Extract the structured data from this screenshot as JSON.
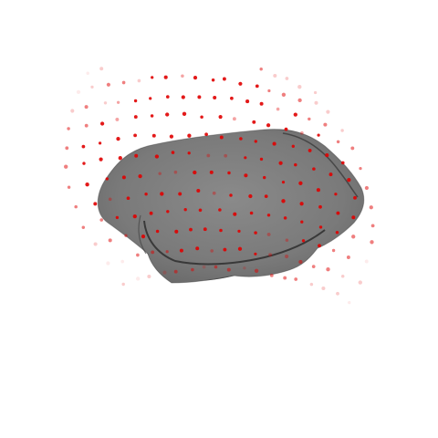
{
  "scene": {
    "background_color": "#ffffff",
    "mesh": {
      "kind": "rounded irregular blob surface",
      "body_color": "#7a7a7a",
      "dark_fold_color": "#3b3b3b",
      "shadow_color": "#4a4a4a",
      "edge_color": "#2e2e2e"
    },
    "point_cloud": {
      "kind": "red point grid",
      "color": "#e00000"
    }
  }
}
